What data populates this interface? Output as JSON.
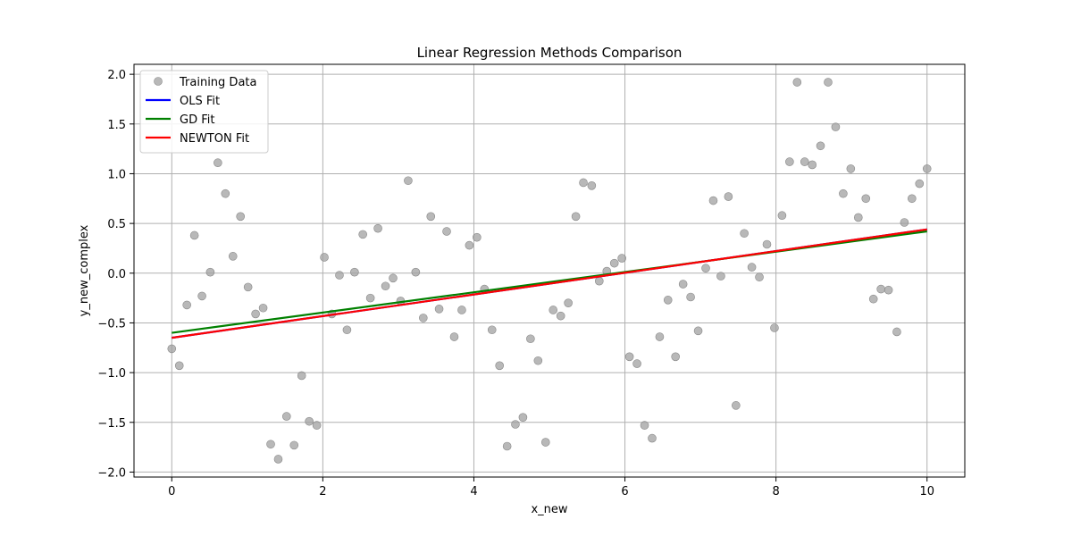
{
  "chart_data": {
    "type": "scatter",
    "title": "Linear Regression Methods Comparison",
    "xlabel": "x_new",
    "ylabel": "y_new_complex",
    "xlim": [
      -0.5,
      10.5
    ],
    "ylim": [
      -2.05,
      2.1
    ],
    "xticks": [
      0,
      2,
      4,
      6,
      8,
      10
    ],
    "yticks": [
      -2.0,
      -1.5,
      -1.0,
      -0.5,
      0.0,
      0.5,
      1.0,
      1.5,
      2.0
    ],
    "grid": true,
    "legend": "top-left",
    "scatter": {
      "name": "Training Data",
      "color": "#a0a0a0",
      "x": [
        0.0,
        0.1,
        0.2,
        0.3,
        0.4,
        0.51,
        0.61,
        0.71,
        0.81,
        0.91,
        1.01,
        1.11,
        1.21,
        1.31,
        1.41,
        1.52,
        1.62,
        1.72,
        1.82,
        1.92,
        2.02,
        2.12,
        2.22,
        2.32,
        2.42,
        2.53,
        2.63,
        2.73,
        2.83,
        2.93,
        3.03,
        3.13,
        3.23,
        3.33,
        3.43,
        3.54,
        3.64,
        3.74,
        3.84,
        3.94,
        4.04,
        4.14,
        4.24,
        4.34,
        4.44,
        4.55,
        4.65,
        4.75,
        4.85,
        4.95,
        5.05,
        5.15,
        5.25,
        5.35,
        5.45,
        5.56,
        5.66,
        5.76,
        5.86,
        5.96,
        6.06,
        6.16,
        6.26,
        6.36,
        6.46,
        6.57,
        6.67,
        6.77,
        6.87,
        6.97,
        7.07,
        7.17,
        7.27,
        7.37,
        7.47,
        7.58,
        7.68,
        7.78,
        7.88,
        7.98,
        8.08,
        8.18,
        8.28,
        8.38,
        8.48,
        8.59,
        8.69,
        8.79,
        8.89,
        8.99,
        9.09,
        9.19,
        9.29,
        9.39,
        9.49,
        9.6,
        9.7,
        9.8,
        9.9,
        10.0
      ],
      "y": [
        -0.76,
        -0.93,
        -0.32,
        0.38,
        -0.23,
        0.01,
        1.11,
        0.8,
        0.17,
        0.57,
        -0.14,
        -0.41,
        -0.35,
        -1.72,
        -1.87,
        -1.44,
        -1.73,
        -1.03,
        -1.49,
        -1.53,
        0.16,
        -0.41,
        -0.02,
        -0.57,
        0.01,
        0.39,
        -0.25,
        0.45,
        -0.13,
        -0.05,
        -0.28,
        0.93,
        0.01,
        -0.45,
        0.57,
        -0.36,
        0.42,
        -0.64,
        -0.37,
        0.28,
        0.36,
        -0.16,
        -0.57,
        -0.93,
        -1.74,
        -1.52,
        -1.45,
        -0.66,
        -0.88,
        -1.7,
        -0.37,
        -0.43,
        -0.3,
        0.57,
        0.91,
        0.88,
        -0.08,
        0.02,
        0.1,
        0.15,
        -0.84,
        -0.91,
        -1.53,
        -1.66,
        -0.64,
        -0.27,
        -0.84,
        -0.11,
        -0.24,
        -0.58,
        0.05,
        0.73,
        -0.03,
        0.77,
        -1.33,
        0.4,
        0.06,
        -0.04,
        0.29,
        -0.55,
        0.58,
        1.12,
        1.92,
        1.12,
        1.09,
        1.28,
        1.92,
        1.47,
        0.8,
        1.05,
        0.56,
        0.75,
        -0.26,
        -0.16,
        -0.17,
        -0.59,
        0.51,
        0.75,
        0.9,
        1.05
      ]
    },
    "series": [
      {
        "name": "OLS Fit",
        "color": "#0000ff",
        "x": [
          0,
          10
        ],
        "y": [
          -0.65,
          0.44
        ]
      },
      {
        "name": "GD Fit",
        "color": "#008000",
        "x": [
          0,
          10
        ],
        "y": [
          -0.6,
          0.42
        ]
      },
      {
        "name": "NEWTON Fit",
        "color": "#ff0000",
        "x": [
          0,
          10
        ],
        "y": [
          -0.65,
          0.44
        ]
      }
    ]
  }
}
